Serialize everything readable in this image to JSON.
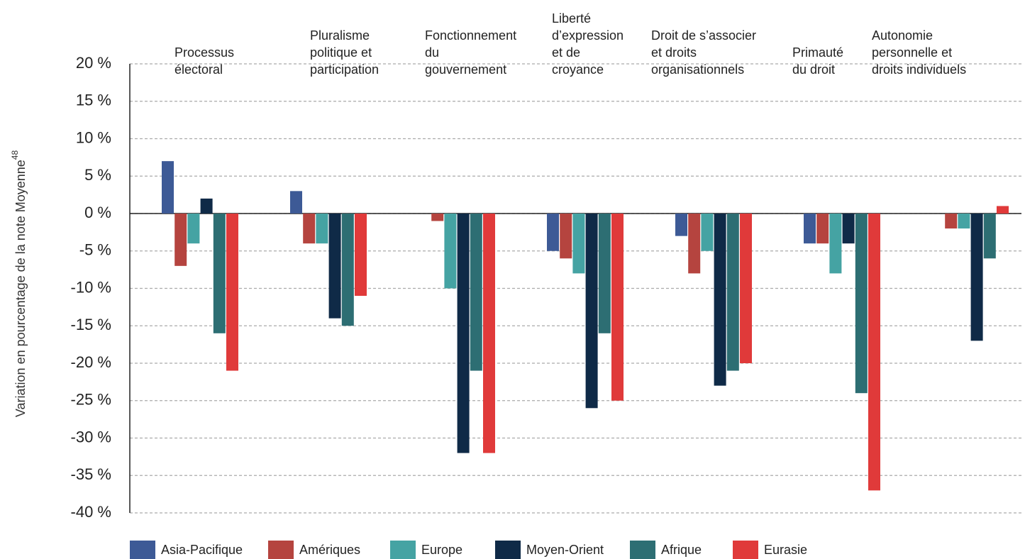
{
  "chart_data": {
    "type": "bar",
    "y_label": "Variation en pourcentage de la note Moyenne",
    "y_label_sup": "48",
    "categories": [
      [
        "Processus",
        "électoral"
      ],
      [
        "Pluralisme",
        "politique et",
        "participation"
      ],
      [
        "Fonctionnement",
        "du",
        "gouvernement"
      ],
      [
        "Liberté",
        "d’expression",
        "et de",
        "croyance"
      ],
      [
        "Droit de s’associer",
        "et droits",
        "organisationnels"
      ],
      [
        "Primauté",
        "du droit"
      ],
      [
        "Autonomie",
        "personnelle et",
        "droits individuels"
      ]
    ],
    "series": [
      {
        "name": "Asia-Pacifique",
        "color": "#3d5a96",
        "values": [
          7,
          3,
          0,
          -5,
          -3,
          -4,
          0
        ]
      },
      {
        "name": "Amériques",
        "color": "#b5443f",
        "values": [
          -7,
          -4,
          -1,
          -6,
          -8,
          -4,
          -2
        ]
      },
      {
        "name": "Europe",
        "color": "#45a3a3",
        "values": [
          -4,
          -4,
          -10,
          -8,
          -5,
          -8,
          -2
        ]
      },
      {
        "name": "Moyen-Orient",
        "color": "#0f2a47",
        "values": [
          2,
          -14,
          -32,
          -26,
          -23,
          -4,
          -17
        ]
      },
      {
        "name": "Afrique",
        "color": "#2d6e73",
        "values": [
          -16,
          -15,
          -21,
          -16,
          -21,
          -24,
          -6
        ]
      },
      {
        "name": "Eurasie",
        "color": "#e03a3a",
        "values": [
          -21,
          -11,
          -32,
          -25,
          -20,
          -37,
          1
        ]
      }
    ],
    "ylim": [
      -40,
      20
    ],
    "yticks": [
      {
        "value": -40,
        "label": "-40 %"
      },
      {
        "value": -35,
        "label": "-35 %"
      },
      {
        "value": -30,
        "label": "-30 %"
      },
      {
        "value": -25,
        "label": "-25 %"
      },
      {
        "value": -20,
        "label": "-20 %"
      },
      {
        "value": -15,
        "label": "-15 %"
      },
      {
        "value": -10,
        "label": "-10 %"
      },
      {
        "value": -5,
        "label": "-5 %"
      },
      {
        "value": 0,
        "label": "0 %"
      },
      {
        "value": 5,
        "label": "5 %"
      },
      {
        "value": 10,
        "label": "10 %"
      },
      {
        "value": 15,
        "label": "15 %"
      },
      {
        "value": 20,
        "label": "20 %"
      }
    ],
    "grid": true,
    "legend": "bottom"
  }
}
